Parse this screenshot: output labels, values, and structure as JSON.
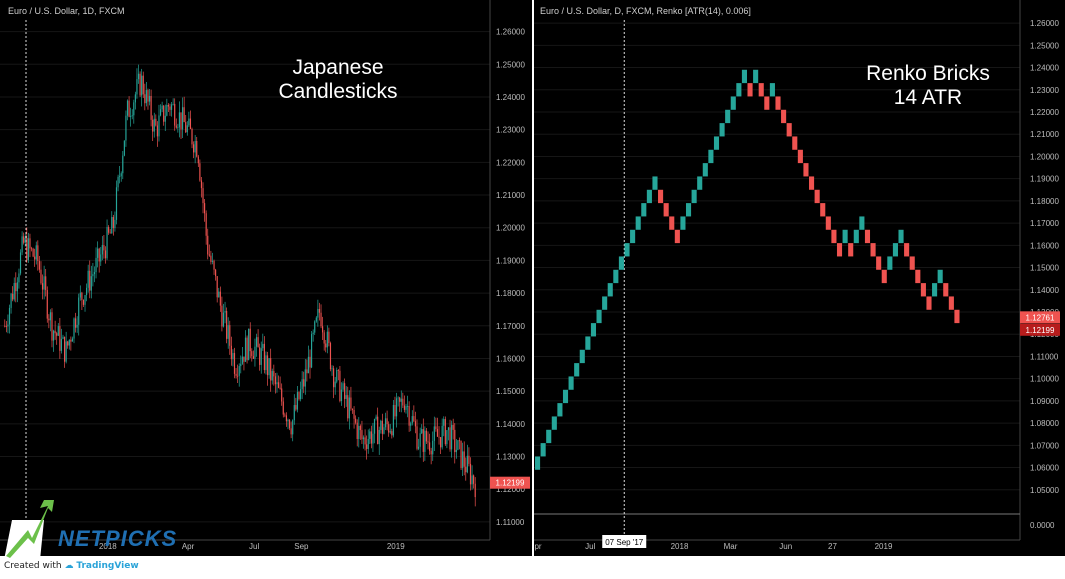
{
  "colors": {
    "background": "#000000",
    "up": "#26a69a",
    "down": "#ef5350",
    "axis_text": "#bdbdbd",
    "grid": "#3a3a3a",
    "price_tag": "#ef5350",
    "logo_green": "#6cc04a",
    "logo_blue": "#1f6fb2"
  },
  "branding": {
    "logo_text": "NETPICKS",
    "created_with": "Created with",
    "tradingview": "TradingView"
  },
  "chart_data": [
    {
      "type": "candlestick",
      "header": "Euro / U.S. Dollar, 1D, FXCM",
      "annotation_line1": "Japanese",
      "annotation_line2": "Candlesticks",
      "y_range": [
        1.106,
        1.266
      ],
      "y_ticks": [
        1.11,
        1.12,
        1.13,
        1.14,
        1.15,
        1.16,
        1.17,
        1.18,
        1.19,
        1.2,
        1.21,
        1.22,
        1.23,
        1.24,
        1.25,
        1.26
      ],
      "y_tick_labels": [
        "1.11000",
        "1.12000",
        "1.13000",
        "1.14000",
        "1.15000",
        "1.16000",
        "1.17000",
        "1.18000",
        "1.19000",
        "1.20000",
        "1.21000",
        "1.22000",
        "1.23000",
        "1.24000",
        "1.25000",
        "1.26000"
      ],
      "x_labels": [
        "2018",
        "Apr",
        "Jul",
        "Sep",
        "2019"
      ],
      "x_label_positions": [
        0.22,
        0.39,
        0.53,
        0.63,
        0.83
      ],
      "last_price": "1.12199",
      "last_value": 1.122,
      "path_anchors": [
        [
          0,
          1.17
        ],
        [
          0.04,
          1.195
        ],
        [
          0.07,
          1.19
        ],
        [
          0.1,
          1.17
        ],
        [
          0.13,
          1.162
        ],
        [
          0.16,
          1.178
        ],
        [
          0.2,
          1.19
        ],
        [
          0.23,
          1.2
        ],
        [
          0.26,
          1.235
        ],
        [
          0.29,
          1.245
        ],
        [
          0.32,
          1.23
        ],
        [
          0.35,
          1.238
        ],
        [
          0.38,
          1.232
        ],
        [
          0.41,
          1.225
        ],
        [
          0.43,
          1.195
        ],
        [
          0.46,
          1.175
        ],
        [
          0.49,
          1.158
        ],
        [
          0.52,
          1.165
        ],
        [
          0.55,
          1.16
        ],
        [
          0.58,
          1.15
        ],
        [
          0.61,
          1.14
        ],
        [
          0.64,
          1.155
        ],
        [
          0.67,
          1.175
        ],
        [
          0.7,
          1.155
        ],
        [
          0.73,
          1.145
        ],
        [
          0.76,
          1.135
        ],
        [
          0.79,
          1.138
        ],
        [
          0.82,
          1.14
        ],
        [
          0.85,
          1.148
        ],
        [
          0.88,
          1.135
        ],
        [
          0.91,
          1.135
        ],
        [
          0.94,
          1.138
        ],
        [
          0.97,
          1.13
        ],
        [
          1.0,
          1.122
        ]
      ]
    },
    {
      "type": "renko",
      "header": "Euro / U.S. Dollar, D, FXCM, Renko [ATR(14), 0.006]",
      "annotation_line1": "Renko Bricks",
      "annotation_line2": "14 ATR",
      "brick_size": 0.006,
      "start_price": 1.059,
      "bricks": [
        1,
        1,
        1,
        1,
        1,
        1,
        1,
        1,
        1,
        1,
        1,
        1,
        1,
        1,
        1,
        1,
        1,
        1,
        1,
        1,
        1,
        1,
        -1,
        -1,
        -1,
        -1,
        1,
        1,
        1,
        1,
        1,
        1,
        1,
        1,
        1,
        1,
        1,
        1,
        -1,
        1,
        -1,
        -1,
        1,
        -1,
        -1,
        -1,
        -1,
        -1,
        -1,
        -1,
        -1,
        -1,
        -1,
        -1,
        -1,
        1,
        -1,
        1,
        1,
        -1,
        -1,
        -1,
        -1,
        1,
        1,
        1,
        -1,
        -1,
        -1,
        -1,
        -1,
        1,
        1,
        -1,
        -1,
        -1
      ],
      "y_range": [
        1.04,
        1.265
      ],
      "y_ticks": [
        1.05,
        1.06,
        1.07,
        1.08,
        1.09,
        1.1,
        1.11,
        1.12,
        1.13,
        1.14,
        1.15,
        1.16,
        1.17,
        1.18,
        1.19,
        1.2,
        1.21,
        1.22,
        1.23,
        1.24,
        1.25,
        1.26
      ],
      "y_tick_labels": [
        "1.05000",
        "1.06000",
        "1.07000",
        "1.08000",
        "1.09000",
        "1.10000",
        "1.11000",
        "1.12000",
        "1.13000",
        "1.14000",
        "1.15000",
        "1.16000",
        "1.17000",
        "1.18000",
        "1.19000",
        "1.20000",
        "1.21000",
        "1.22000",
        "1.23000",
        "1.24000",
        "1.25000",
        "1.26000"
      ],
      "x_labels": [
        "pr",
        "Jul",
        "2018",
        "Mar",
        "Jun",
        "27",
        "2019"
      ],
      "x_label_positions": [
        0.0,
        0.13,
        0.34,
        0.46,
        0.59,
        0.7,
        0.82
      ],
      "crosshair_label": "07 Sep '17",
      "crosshair_position": 0.21,
      "last_price": "1.12199",
      "last_value": 1.122,
      "prev_price": "1.12761",
      "prev_value": 1.1276,
      "subpanel_tick_label": "0.0000"
    }
  ]
}
